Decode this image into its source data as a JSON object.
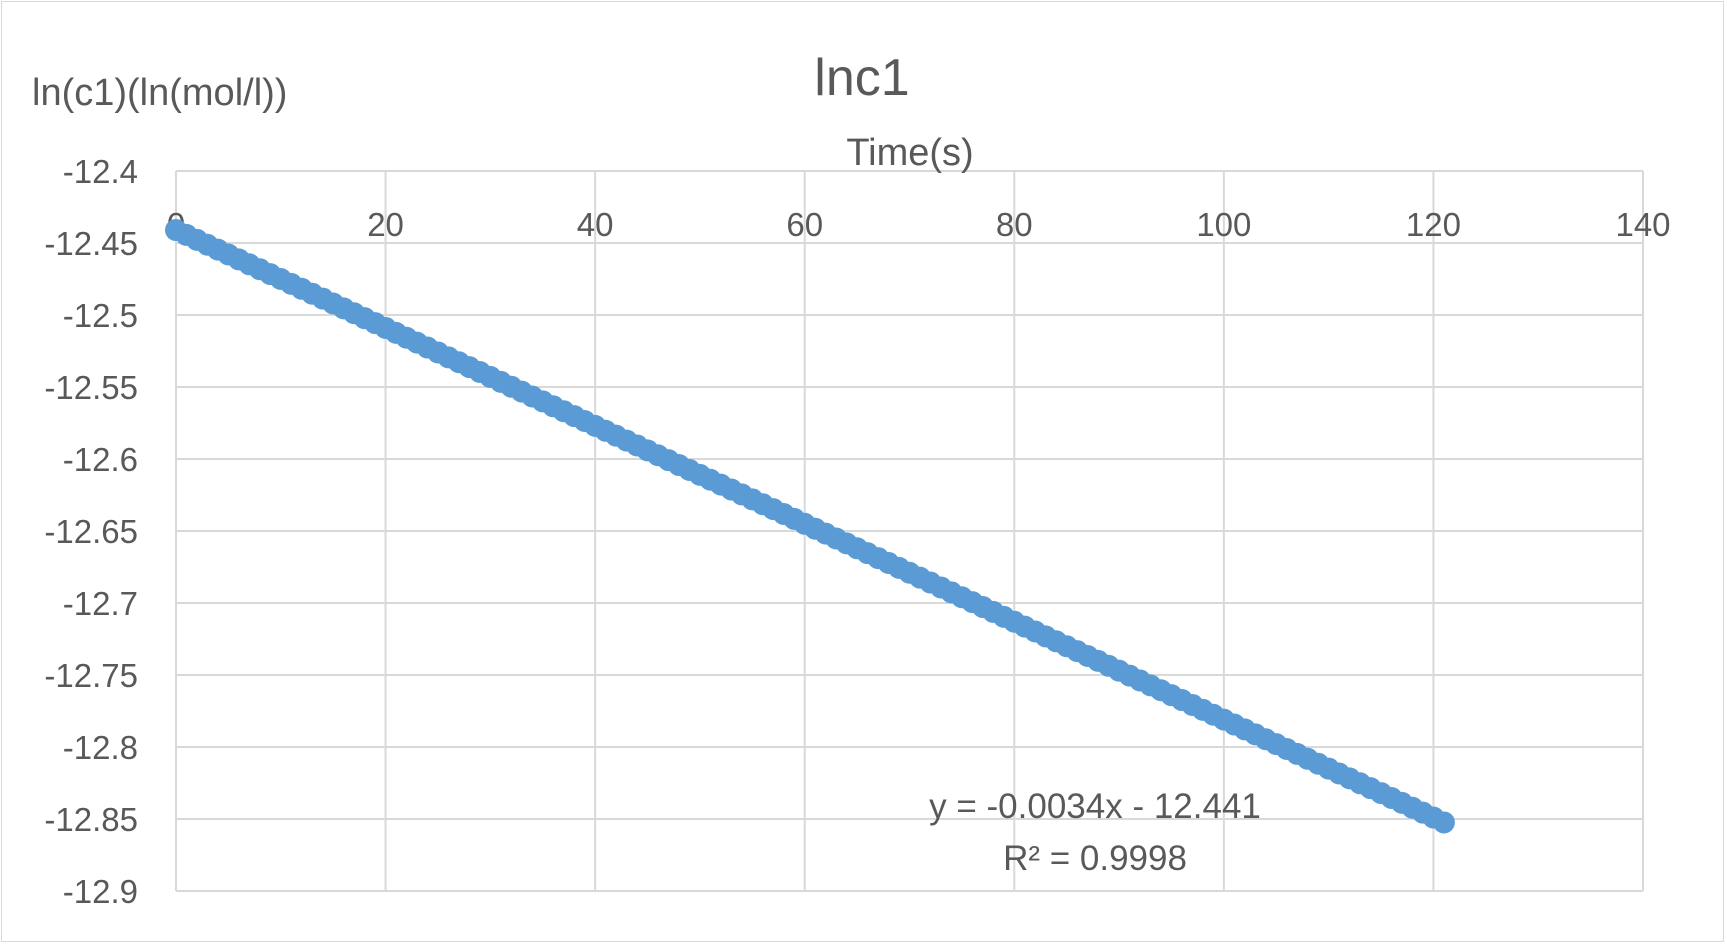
{
  "chart_data": {
    "type": "scatter",
    "title": "lnc1",
    "xlabel": "Time(s)",
    "ylabel": "ln(c1)(ln(mol/l))",
    "xlim": [
      0,
      140
    ],
    "ylim": [
      -12.9,
      -12.4
    ],
    "x_ticks": [
      "0",
      "20",
      "40",
      "60",
      "80",
      "100",
      "120",
      "140"
    ],
    "y_ticks": [
      "-12.4",
      "-12.45",
      "-12.5",
      "-12.55",
      "-12.6",
      "-12.65",
      "-12.7",
      "-12.75",
      "-12.8",
      "-12.85",
      "-12.9"
    ],
    "x_axis_position": "top",
    "grid": true,
    "legend": "none",
    "series": [
      {
        "color": "#5b9bd5",
        "x_start": 0,
        "x_end": 121,
        "x_step": 1,
        "slope": -0.0034,
        "intercept": -12.441
      }
    ],
    "trendline": {
      "equation": "y = -0.0034x - 12.441",
      "r_squared": "R² = 0.9998"
    }
  },
  "colors": {
    "series": "#5b9bd5",
    "grid": "#d9d9d9",
    "text": "#595959"
  }
}
